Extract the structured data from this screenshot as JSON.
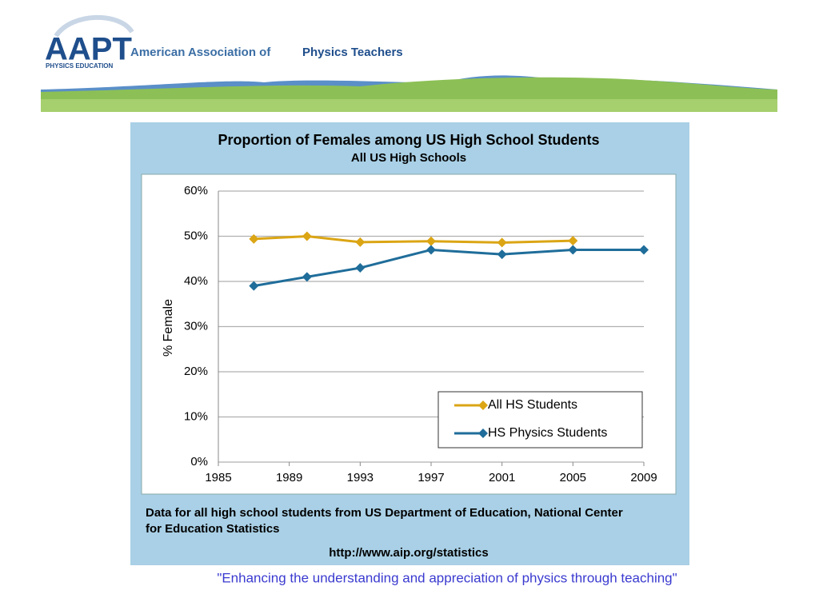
{
  "header": {
    "logo": "AAPT",
    "logo_sub": "PHYSICS EDUCATION",
    "org_name": "American Association of",
    "org_name_bold": "Physics Teachers"
  },
  "chart_data": {
    "type": "line",
    "title": "Proportion of Females among US High School Students",
    "subtitle": "All US High Schools",
    "y_label": "% Female",
    "xlim": [
      1985,
      2009
    ],
    "xticks": [
      1985,
      1989,
      1993,
      1997,
      2001,
      2005,
      2009
    ],
    "ylim": [
      0,
      60
    ],
    "yticks": [
      {
        "value": 0,
        "label": "0%"
      },
      {
        "value": 10,
        "label": "10%"
      },
      {
        "value": 20,
        "label": "20%"
      },
      {
        "value": 30,
        "label": "30%"
      },
      {
        "value": 40,
        "label": "40%"
      },
      {
        "value": 50,
        "label": "50%"
      },
      {
        "value": 60,
        "label": "60%"
      }
    ],
    "grid": true,
    "legend": "lower right",
    "series": [
      {
        "name": "All HS Students",
        "color": "#dba514",
        "x": [
          1987,
          1990,
          1993,
          1997,
          2001,
          2005
        ],
        "values": [
          49.4,
          50,
          48.7,
          48.9,
          48.6,
          49
        ]
      },
      {
        "name": "HS Physics Students",
        "color": "#1f6d9a",
        "x": [
          1987,
          1990,
          1993,
          1997,
          2001,
          2005,
          2009
        ],
        "values": [
          39,
          41,
          43,
          47,
          46,
          47,
          47
        ]
      }
    ]
  },
  "slide": {
    "note": [
      "Data for all high school students from US Department of Education, National Center",
      "for Education Statistics"
    ],
    "url": "http://www.aip.org/statistics",
    "quote": "\"Enhancing the understanding and appreciation of physics through teaching\""
  }
}
